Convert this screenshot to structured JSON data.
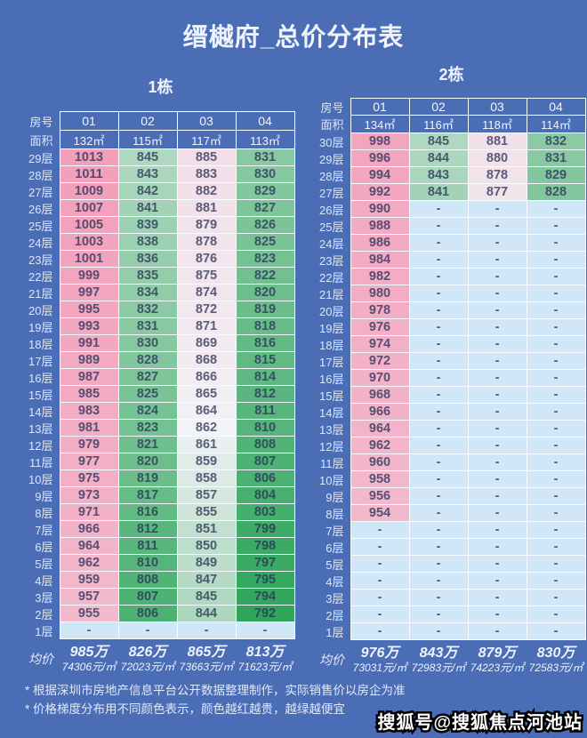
{
  "page": {
    "title": "缙樾府_总价分布表",
    "background_color": "#4a6db6",
    "border_color": "#f8fbff"
  },
  "labels": {
    "room_row": "房号",
    "area_row": "面积",
    "avg_row": "均价"
  },
  "chart_data": {
    "type": "table",
    "value_unit": "万",
    "color_scale": {
      "min": 792,
      "mid": 862,
      "max": 1013,
      "min_color": "#2fa55b",
      "mid_color": "#f2f3f6",
      "max_color": "#f29fba",
      "empty_color": "#cfe7f6",
      "text_base_color": "#262e54"
    },
    "tables": [
      {
        "name": "1栋",
        "room_headers": [
          "01",
          "02",
          "03",
          "04"
        ],
        "areas": [
          "132㎡",
          "115㎡",
          "117㎡",
          "113㎡"
        ],
        "floors": [
          {
            "floor": "29层",
            "values": [
              1013,
              845,
              885,
              831
            ]
          },
          {
            "floor": "28层",
            "values": [
              1011,
              843,
              883,
              830
            ]
          },
          {
            "floor": "27层",
            "values": [
              1009,
              842,
              882,
              829
            ]
          },
          {
            "floor": "26层",
            "values": [
              1007,
              841,
              881,
              827
            ]
          },
          {
            "floor": "25层",
            "values": [
              1005,
              839,
              879,
              826
            ]
          },
          {
            "floor": "24层",
            "values": [
              1003,
              838,
              878,
              825
            ]
          },
          {
            "floor": "23层",
            "values": [
              1001,
              836,
              876,
              823
            ]
          },
          {
            "floor": "22层",
            "values": [
              999,
              835,
              875,
              822
            ]
          },
          {
            "floor": "21层",
            "values": [
              997,
              834,
              874,
              820
            ]
          },
          {
            "floor": "20层",
            "values": [
              995,
              832,
              872,
              819
            ]
          },
          {
            "floor": "19层",
            "values": [
              993,
              831,
              871,
              818
            ]
          },
          {
            "floor": "18层",
            "values": [
              991,
              830,
              869,
              816
            ]
          },
          {
            "floor": "17层",
            "values": [
              989,
              828,
              868,
              815
            ]
          },
          {
            "floor": "16层",
            "values": [
              987,
              827,
              866,
              814
            ]
          },
          {
            "floor": "15层",
            "values": [
              985,
              825,
              865,
              812
            ]
          },
          {
            "floor": "14层",
            "values": [
              983,
              824,
              864,
              811
            ]
          },
          {
            "floor": "13层",
            "values": [
              981,
              823,
              862,
              810
            ]
          },
          {
            "floor": "12层",
            "values": [
              979,
              821,
              861,
              808
            ]
          },
          {
            "floor": "11层",
            "values": [
              977,
              820,
              859,
              807
            ]
          },
          {
            "floor": "10层",
            "values": [
              975,
              819,
              858,
              806
            ]
          },
          {
            "floor": "9层",
            "values": [
              973,
              817,
              857,
              804
            ]
          },
          {
            "floor": "8层",
            "values": [
              971,
              816,
              855,
              803
            ]
          },
          {
            "floor": "7层",
            "values": [
              966,
              812,
              851,
              799
            ]
          },
          {
            "floor": "6层",
            "values": [
              964,
              811,
              850,
              798
            ]
          },
          {
            "floor": "5层",
            "values": [
              962,
              810,
              849,
              797
            ]
          },
          {
            "floor": "4层",
            "values": [
              959,
              808,
              847,
              795
            ]
          },
          {
            "floor": "3层",
            "values": [
              957,
              807,
              845,
              794
            ]
          },
          {
            "floor": "2层",
            "values": [
              955,
              806,
              844,
              792
            ]
          },
          {
            "floor": "1层",
            "values": [
              "-",
              "-",
              "-",
              "-"
            ]
          }
        ],
        "average": {
          "total_prices": [
            "985万",
            "826万",
            "865万",
            "813万"
          ],
          "unit_prices": [
            "74306元/㎡",
            "72023元/㎡",
            "73663元/㎡",
            "71623元/㎡"
          ]
        }
      },
      {
        "name": "2栋",
        "room_headers": [
          "01",
          "02",
          "03",
          "04"
        ],
        "areas": [
          "134㎡",
          "116㎡",
          "118㎡",
          "114㎡"
        ],
        "floors": [
          {
            "floor": "30层",
            "values": [
              998,
              845,
              881,
              832
            ]
          },
          {
            "floor": "29层",
            "values": [
              996,
              844,
              880,
              831
            ]
          },
          {
            "floor": "28层",
            "values": [
              994,
              843,
              878,
              829
            ]
          },
          {
            "floor": "27层",
            "values": [
              992,
              841,
              877,
              828
            ]
          },
          {
            "floor": "26层",
            "values": [
              990,
              "-",
              "-",
              "-"
            ]
          },
          {
            "floor": "25层",
            "values": [
              988,
              "-",
              "-",
              "-"
            ]
          },
          {
            "floor": "24层",
            "values": [
              986,
              "-",
              "-",
              "-"
            ]
          },
          {
            "floor": "23层",
            "values": [
              984,
              "-",
              "-",
              "-"
            ]
          },
          {
            "floor": "22层",
            "values": [
              982,
              "-",
              "-",
              "-"
            ]
          },
          {
            "floor": "21层",
            "values": [
              980,
              "-",
              "-",
              "-"
            ]
          },
          {
            "floor": "20层",
            "values": [
              978,
              "-",
              "-",
              "-"
            ]
          },
          {
            "floor": "19层",
            "values": [
              976,
              "-",
              "-",
              "-"
            ]
          },
          {
            "floor": "18层",
            "values": [
              974,
              "-",
              "-",
              "-"
            ]
          },
          {
            "floor": "17层",
            "values": [
              972,
              "-",
              "-",
              "-"
            ]
          },
          {
            "floor": "16层",
            "values": [
              970,
              "-",
              "-",
              "-"
            ]
          },
          {
            "floor": "15层",
            "values": [
              968,
              "-",
              "-",
              "-"
            ]
          },
          {
            "floor": "14层",
            "values": [
              966,
              "-",
              "-",
              "-"
            ]
          },
          {
            "floor": "13层",
            "values": [
              964,
              "-",
              "-",
              "-"
            ]
          },
          {
            "floor": "12层",
            "values": [
              962,
              "-",
              "-",
              "-"
            ]
          },
          {
            "floor": "11层",
            "values": [
              960,
              "-",
              "-",
              "-"
            ]
          },
          {
            "floor": "10层",
            "values": [
              958,
              "-",
              "-",
              "-"
            ]
          },
          {
            "floor": "9层",
            "values": [
              956,
              "-",
              "-",
              "-"
            ]
          },
          {
            "floor": "8层",
            "values": [
              954,
              "-",
              "-",
              "-"
            ]
          },
          {
            "floor": "7层",
            "values": [
              "-",
              "-",
              "-",
              "-"
            ]
          },
          {
            "floor": "6层",
            "values": [
              "-",
              "-",
              "-",
              "-"
            ]
          },
          {
            "floor": "5层",
            "values": [
              "-",
              "-",
              "-",
              "-"
            ]
          },
          {
            "floor": "4层",
            "values": [
              "-",
              "-",
              "-",
              "-"
            ]
          },
          {
            "floor": "3层",
            "values": [
              "-",
              "-",
              "-",
              "-"
            ]
          },
          {
            "floor": "2层",
            "values": [
              "-",
              "-",
              "-",
              "-"
            ]
          },
          {
            "floor": "1层",
            "values": [
              "-",
              "-",
              "-",
              "-"
            ]
          }
        ],
        "average": {
          "total_prices": [
            "976万",
            "843万",
            "879万",
            "830万"
          ],
          "unit_prices": [
            "73031元/㎡",
            "72983元/㎡",
            "74223元/㎡",
            "72583元/㎡"
          ]
        }
      }
    ]
  },
  "notes": [
    "* 根据深圳市房地产信息平台公开数据整理制作，实际销售价以房企为准",
    "* 价格梯度分布用不同颜色表示，颜色越红越贵，越绿越便宜"
  ],
  "watermark": "搜狐号@搜狐焦点河池站"
}
